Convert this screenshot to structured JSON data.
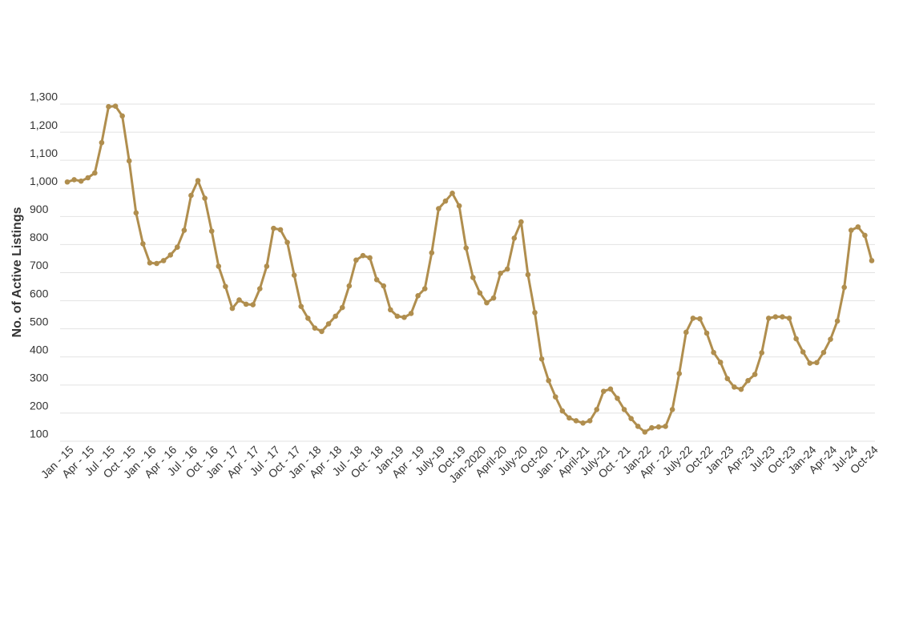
{
  "chart_data": {
    "type": "line",
    "y_label": "No. of Active Listings",
    "categories": [
      "Jan - 15",
      null,
      null,
      "Apr - 15",
      null,
      null,
      "Jul - 15",
      null,
      null,
      "Oct - 15",
      null,
      null,
      "Jan - 16",
      null,
      null,
      "Apr - 16",
      null,
      null,
      "Jul - 16",
      null,
      null,
      "Oct - 16",
      null,
      null,
      "Jan - 17",
      null,
      null,
      "Apr - 17",
      null,
      null,
      "Jul - 17",
      null,
      null,
      "Oct - 17",
      null,
      null,
      "Jan - 18",
      null,
      null,
      "Apr - 18",
      null,
      null,
      "Jul - 18",
      null,
      null,
      "Oct - 18",
      null,
      null,
      "Jan-19",
      null,
      null,
      "Apr - 19",
      null,
      null,
      "July-19",
      null,
      null,
      "Oct-19",
      null,
      null,
      "Jan-2020",
      null,
      null,
      "April-20",
      null,
      null,
      "July-20",
      null,
      null,
      "Oct-20",
      null,
      null,
      "Jan - 21",
      null,
      null,
      "April-21",
      null,
      null,
      "July-21",
      null,
      null,
      "Oct - 21",
      null,
      null,
      "Jan-22",
      null,
      null,
      "Apr - 22",
      null,
      null,
      "July-22",
      null,
      null,
      "Oct-22",
      null,
      null,
      "Jan-23",
      null,
      null,
      "Apr-23",
      null,
      null,
      "Jul-23",
      null,
      null,
      "Oct-23",
      null,
      null,
      "Jan-24",
      null,
      null,
      "Apr-24",
      null,
      null,
      "Jul-24",
      null,
      null,
      "Oct-24"
    ],
    "series": [
      {
        "color": "#b08e4e",
        "values": [
          1000,
          1008,
          1003,
          1015,
          1032,
          1140,
          1268,
          1270,
          1235,
          1075,
          890,
          780,
          712,
          710,
          720,
          740,
          768,
          828,
          952,
          1005,
          942,
          825,
          700,
          628,
          550,
          580,
          565,
          563,
          620,
          700,
          835,
          830,
          785,
          668,
          557,
          515,
          480,
          468,
          495,
          522,
          553,
          630,
          722,
          738,
          730,
          652,
          630,
          545,
          522,
          518,
          532,
          595,
          620,
          748,
          905,
          932,
          960,
          915,
          765,
          660,
          605,
          570,
          587,
          675,
          690,
          800,
          858,
          670,
          535,
          370,
          293,
          235,
          185,
          160,
          150,
          142,
          150,
          190,
          255,
          263,
          230,
          190,
          158,
          130,
          110,
          125,
          128,
          130,
          190,
          318,
          465,
          515,
          513,
          462,
          393,
          358,
          300,
          270,
          262,
          293,
          315,
          392,
          515,
          520,
          520,
          515,
          442,
          395,
          355,
          357,
          393,
          440,
          505,
          625,
          828,
          840,
          810,
          720
        ]
      }
    ],
    "ylim": [
      100,
      1300
    ],
    "yticks": [
      100,
      200,
      300,
      400,
      500,
      600,
      700,
      800,
      900,
      {
        "value": 1000,
        "label": "1,000"
      },
      {
        "value": 1100,
        "label": "1,100"
      },
      {
        "value": 1200,
        "label": "1,200"
      },
      {
        "value": 1300,
        "label": "1,300"
      }
    ],
    "grid": true
  }
}
